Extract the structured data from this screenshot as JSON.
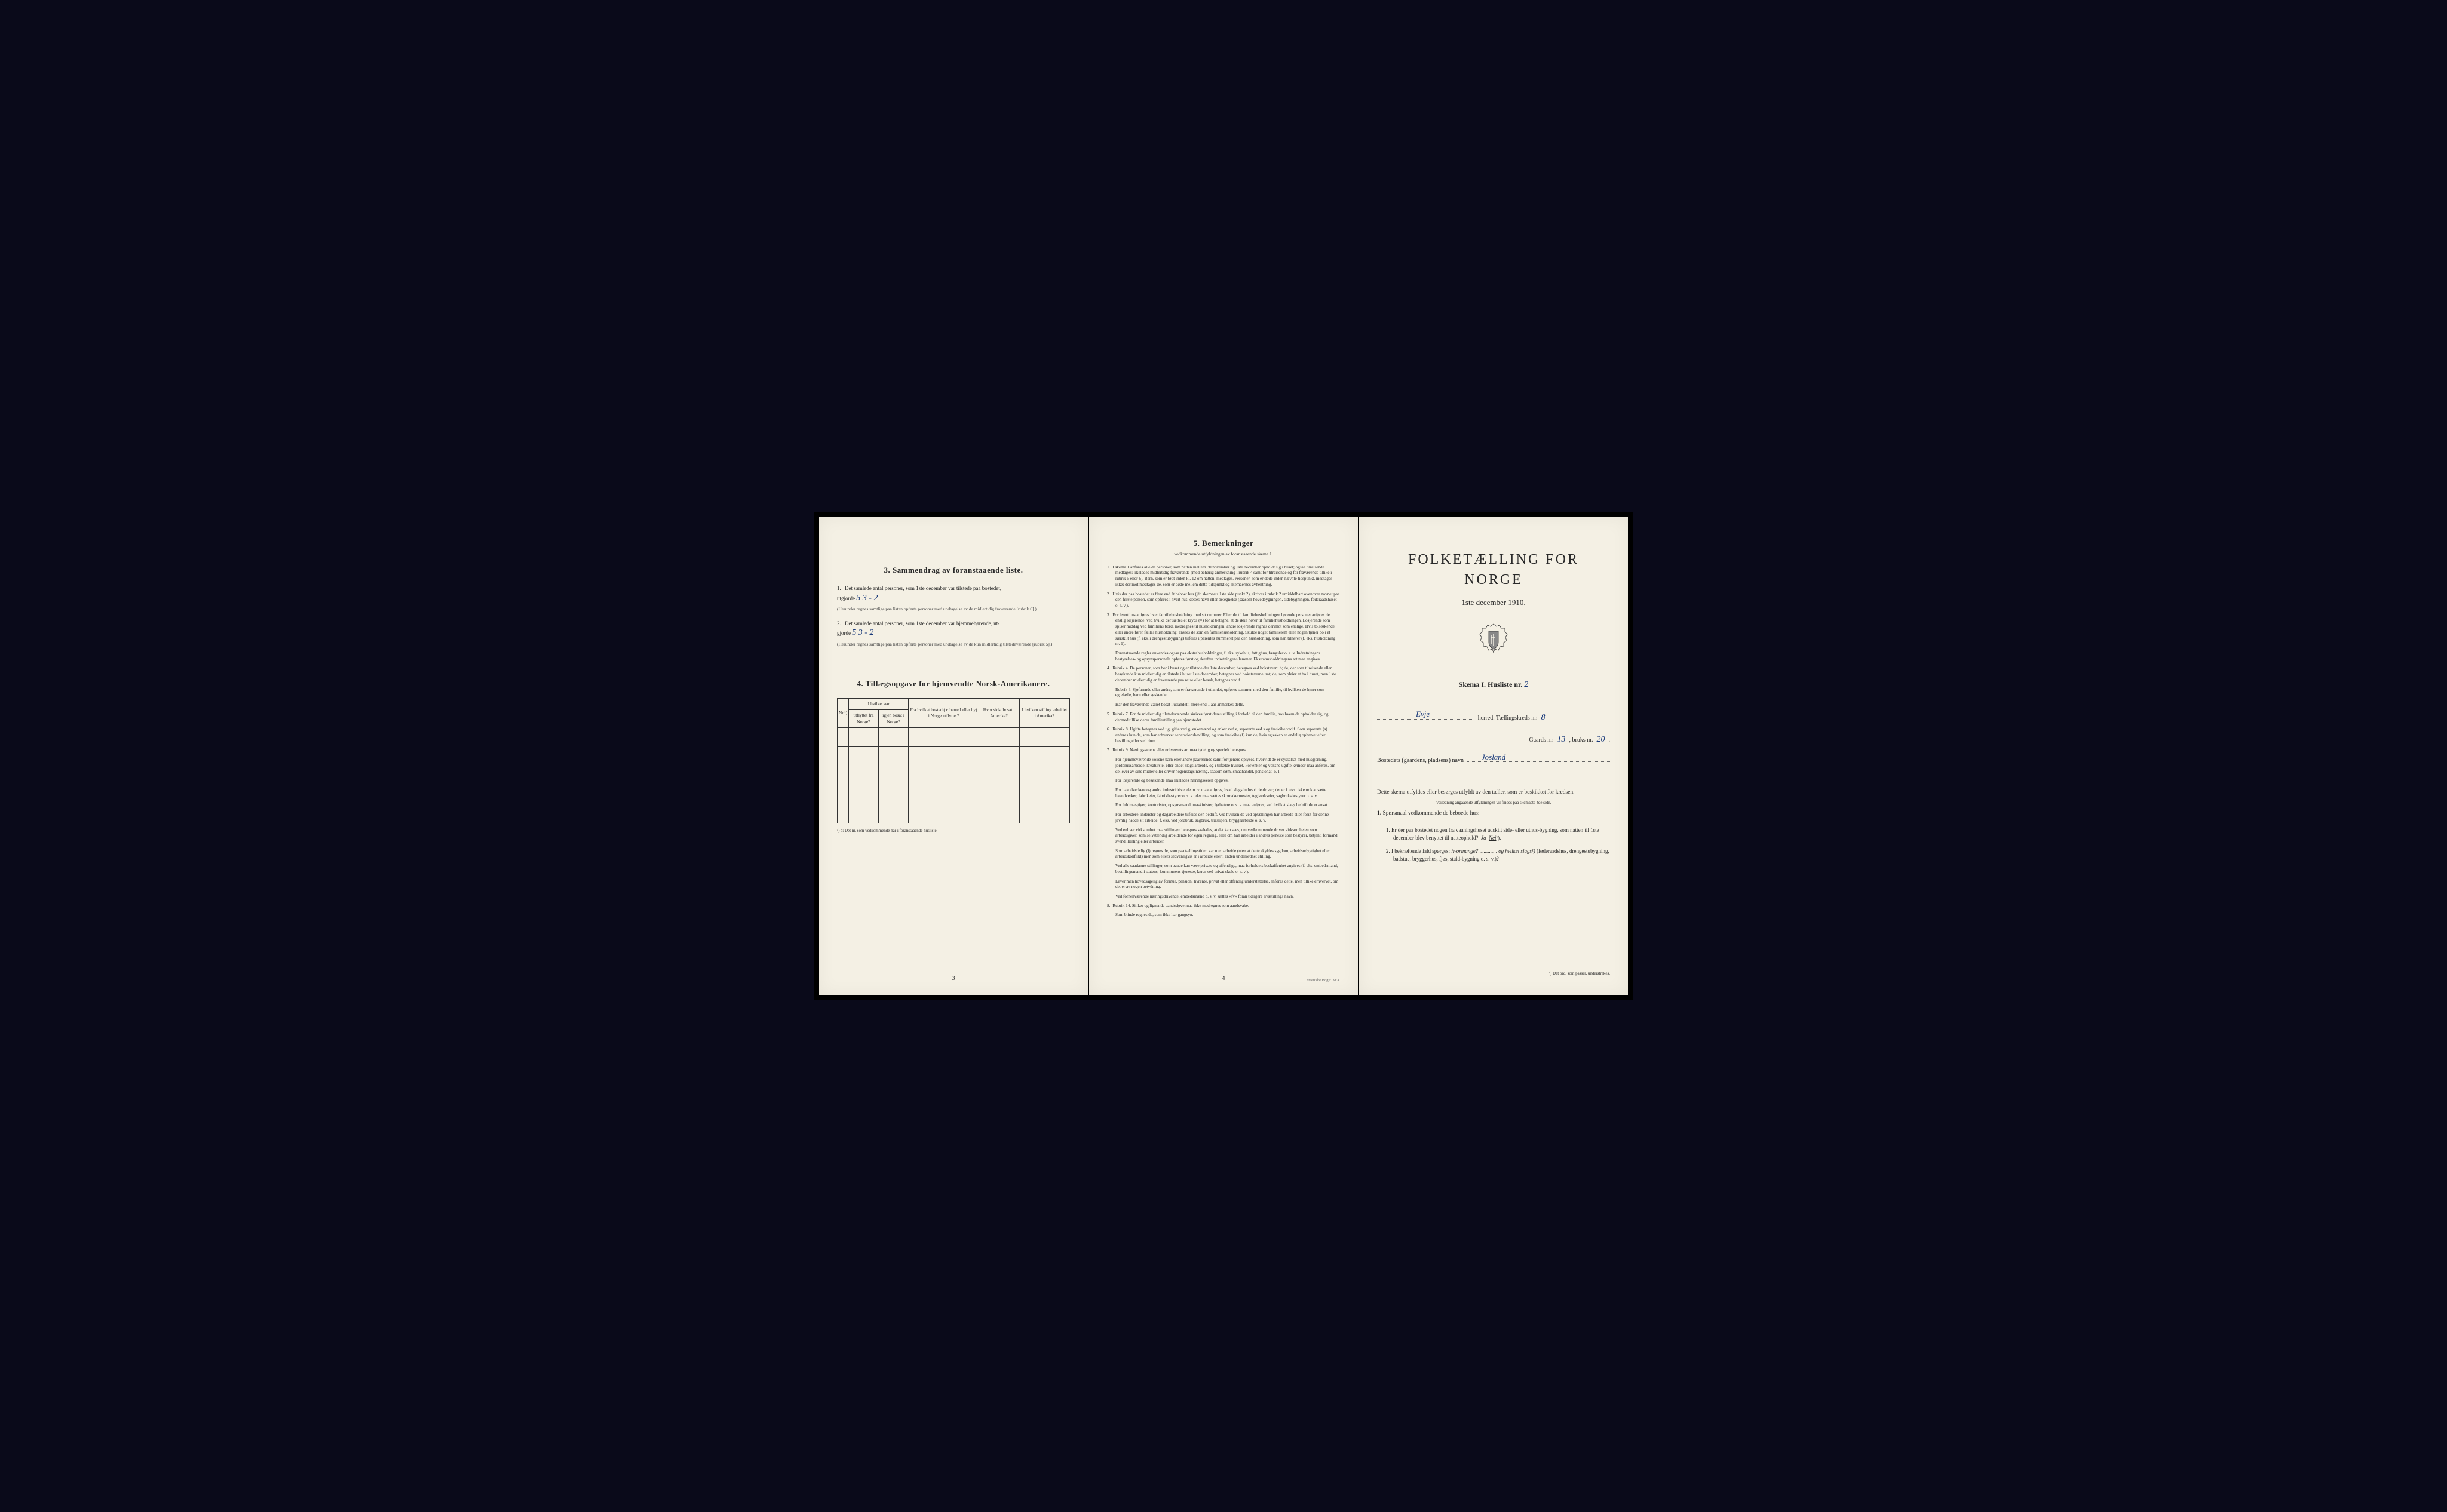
{
  "page3": {
    "section3": {
      "number": "3.",
      "title": "Sammendrag av foranstaaende liste.",
      "item1_num": "1.",
      "item1_text": "Det samlede antal personer, som 1ste december var tilstede paa bostedet,",
      "item1_prefix": "utgjorde",
      "item1_value": "5  3 - 2",
      "item1_note": "(Herunder regnes samtlige paa listen opførte personer med undtagelse av de midlertidig fraværende [rubrik 6].)",
      "item2_num": "2.",
      "item2_text": "Det samlede antal personer, som 1ste december var hjemmehørende, ut-",
      "item2_prefix": "gjorde",
      "item2_value": "5  3 - 2",
      "item2_note": "(Herunder regnes samtlige paa listen opførte personer med undtagelse av de kun midlertidig tilstedeværende [rubrik 5].)"
    },
    "section4": {
      "number": "4.",
      "title": "Tillægsopgave for hjemvendte Norsk-Amerikanere.",
      "headers": {
        "nr": "Nr.¹)",
        "col1_top": "I hvilket aar",
        "col1a": "utflyttet fra Norge?",
        "col1b": "igjen bosat i Norge?",
        "col2": "Fra hvilket bosted (ɔ: herred eller by) i Norge utflyttet?",
        "col3": "Hvor sidst bosat i Amerika?",
        "col4": "I hvilken stilling arbeidet i Amerika?"
      },
      "footnote": "¹) ɔ: Det nr. som vedkommende har i foranstaaende husliste."
    },
    "page_number": "3"
  },
  "page_center": {
    "section5": {
      "number": "5.",
      "title": "Bemerkninger",
      "subtitle": "vedkommende utfyldningen av foranstaaende skema 1.",
      "items": [
        {
          "num": "1.",
          "text": "I skema 1 anføres alle de personer, som natten mellem 30 november og 1ste december opholdt sig i huset; ogsaa tilreisende medtages; likeledes midlertidig fraværende (med behørig anmerkning i rubrik 4 samt for tilreisende og for fraværende tillike i rubrik 5 eller 6). Barn, som er født inden kl. 12 om natten, medtages. Personer, som er døde inden nævnte tidspunkt, medtages ikke; derimot medtages de, som er døde mellem dette tidspunkt og skemaernes avhentning."
        },
        {
          "num": "2.",
          "text": "Hvis der paa bostedet er flere end ét beboet hus (jfr. skemaets 1ste side punkt 2), skrives i rubrik 2 umiddelbart ovenover navnet paa den første person, som opføres i hvert hus, dettes navn eller betegnelse (saasom hovedbygningen, sidebygningen, føderaadshuset o. s. v.)."
        },
        {
          "num": "3.",
          "text": "For hvert hus anføres hver familiehusholdning med sit nummer. Efter de til familiehusholdningen hørende personer anføres de enslig losjerende, ved hvilke der sættes et kryds (×) for at betegne, at de ikke hører til familiehusholdningen. Losjerende som spiser middag ved familiens bord, medregnes til husholdningen; andre losjerende regnes derimot som enslige. Hvis to søskende eller andre fører fælles husholdning, ansees de som en familiehusholdning. Skulde noget familielem eller nogen tjener bo i et særskilt hus (f. eks. i drengestubygning) tilføies i parentes nummeret paa den husholdning, som han tilhører (f. eks. husholdning nr. 1).",
          "sub": "Foranstaaende regler anvendes ogsaa paa ekstrahusholdninger, f. eks. sykehus, fattighus, fængsler o. s. v. Indretningens bestyrelses- og opsynspersonale opføres først og derefter indretningens lemmer. Ekstrahusholdningens art maa angives."
        },
        {
          "num": "4.",
          "text": "Rubrik 4. De personer, som bor i huset og er tilstede der 1ste december, betegnes ved bokstaven: b; de, der som tilreisende eller besøkende kun midlertidig er tilstede i huset 1ste december, betegnes ved bokstaverne: mt; de, som pleier at bo i huset, men 1ste december midlertidig er fraværende paa reise eller besøk, betegnes ved f.",
          "sub": "Rubrik 6. Sjøfarende eller andre, som er fraværende i utlandet, opføres sammen med den familie, til hvilken de hører som egtefælle, barn eller søskende.",
          "sub2": "Har den fraværende været bosat i utlandet i mere end 1 aar anmerkes dette."
        },
        {
          "num": "5.",
          "text": "Rubrik 7. For de midlertidig tilstedeværende skrives først deres stilling i forhold til den familie, hos hvem de opholder sig, og dermed tillike deres familiestilling paa hjemstedet."
        },
        {
          "num": "6.",
          "text": "Rubrik 8. Ugifte betegnes ved ug, gifte ved g, enkemænd og enker ved e, separerte ved s og fraskilte ved f. Som separerte (s) anføres kun de, som har erhvervet separationsbevilling, og som fraskilte (f) kun de, hvis egteskap er endelig ophævet efter bevilling eller ved dom."
        },
        {
          "num": "7.",
          "text": "Rubrik 9. Næringsveiens eller erhvervets art maa tydelig og specielt betegnes.",
          "sub": "For hjemmeværende voksne barn eller andre paarørende samt for tjenere oplyses, hvorvidt de er sysselsat med husgjerning, jordbruksarbeide, kreaturstel eller andet slags arbeide, og i tilfælde hvilket. For enker og voksne ugifte kvinder maa anføres, om de lever av sine midler eller driver nogenslags næring, saasom søm, smaahandel, pensionat, o. l.",
          "sub2": "For losjerende og besøkende maa likeledes næringsveien opgives.",
          "sub3": "For haandverkere og andre industridrivende m. v. maa anføres, hvad slags industri de driver; det er f. eks. ikke nok at sætte haandverker, fabrikeier, fabrikbestyrer o. s. v.; der maa sættes skomakermester, teglverkseier, sagbruksbestyrer o. s. v.",
          "sub4": "For fuldmægtiger, kontorister, opsynsmænd, maskinister, fyrbøtere o. s. v. maa anføres, ved hvilket slags bedrift de er ansat.",
          "sub5": "For arbeidere, inderster og dagarbeidere tilføies den bedrift, ved hvilken de ved optællingen har arbeide eller forut for denne jevnlig hadde sit arbeide, f. eks. ved jordbruk, sagbruk, træsliperi, bryggearbeide o. s. v.",
          "sub6": "Ved enhver virksomhet maa stillingen betegnes saaledes, at det kan sees, om vedkommende driver virksomheten som arbeidsgiver, som selvstændig arbeidende for egen regning, eller om han arbeider i andres tjeneste som bestyrer, betjent, formand, svend, lærling eller arbeider.",
          "sub7": "Som arbeidsledig (l) regnes de, som paa tællingstiden var uten arbeide (uten at dette skyldes sygdom, arbeidsudygtighet eller arbeidskonflikt) men som ellers sedvanligvis er i arbeide eller i anden underordnet stilling.",
          "sub8": "Ved alle saadanne stillinger, som baade kan være private og offentlige, maa forholdets beskaffenhet angives (f. eks. embedsmand, bestillingsmand i statens, kommunens tjeneste, lærer ved privat skole o. s. v.).",
          "sub9": "Lever man hovedsagelig av formue, pension, livrente, privat eller offentlig understøttelse, anføres dette, men tillike erhvervet, om det er av nogen betydning.",
          "sub10": "Ved forhenværende næringsdrivende, embedsmænd o. s. v. sættes «fv» foran tidligere livsstillings navn."
        },
        {
          "num": "8.",
          "text": "Rubrik 14. Sinker og lignende aandssløve maa ikke medregnes som aandsvake.",
          "sub": "Som blinde regnes de, som ikke har gangsyn."
        }
      ]
    },
    "page_number": "4",
    "printer": "Steen'ske Bogtr.  Kr.a."
  },
  "page_right": {
    "main_title": "FOLKETÆLLING FOR NORGE",
    "main_date": "1ste december 1910.",
    "skema_label": "Skema I.  Husliste nr.",
    "skema_value": "2",
    "herred_label": "herred.  Tællingskreds nr.",
    "herred_value": "Evje",
    "kreds_value": "8",
    "gaards_label": "Gaards nr.",
    "gaards_value": "13",
    "bruks_label": ", bruks nr.",
    "bruks_value": "20",
    "bosted_label": "Bostedets (gaardens, pladsens) navn",
    "bosted_value": "Josland",
    "instructions_p1": "Dette skema utfyldes eller besørges utfyldt av den tæller, som er beskikket for kredsen.",
    "instructions_tiny": "Veiledning angaaende utfyldningen vil findes paa skemaets 4de side.",
    "q_header_num": "1.",
    "q_header": "Spørsmaal vedkommende de beboede hus:",
    "q1_num": "1.",
    "q1_text": "Er der paa bostedet nogen fra vaaningshuset adskilt side- eller uthus-bygning, som natten til 1ste december blev benyttet til natteophold?",
    "q1_ja": "Ja",
    "q1_nei": "Nei",
    "q1_sup": "¹).",
    "q2_num": "2.",
    "q2_text_a": "I bekræftende fald spørges:",
    "q2_text_b": "hvormange?",
    "q2_text_c": "og hvilket slags¹)",
    "q2_text_d": "(føderaadshus, drengestubygning, badstue, bryggerhus, fjøs, stald-bygning o. s. v.)?",
    "footnote": "¹) Det ord, som passer, understrekes."
  }
}
